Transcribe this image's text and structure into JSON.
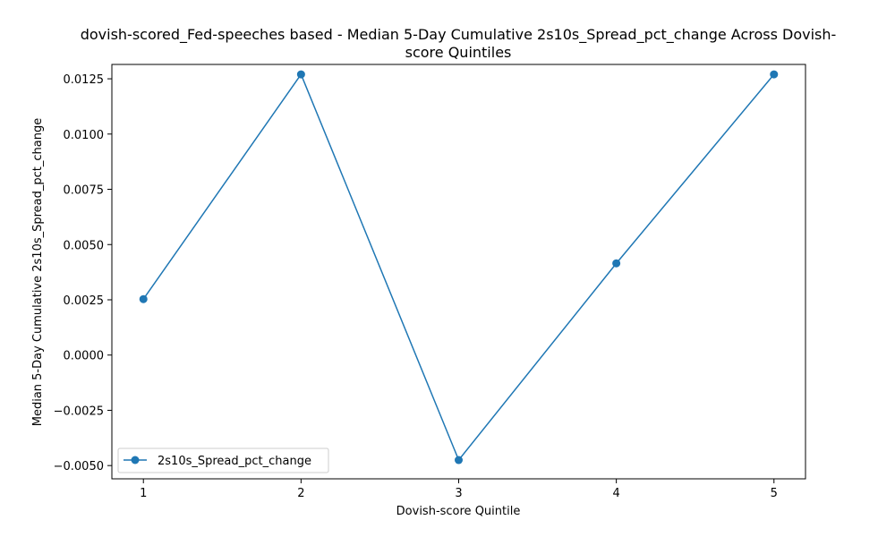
{
  "chart_data": {
    "type": "line",
    "title_line1": "dovish-scored_Fed-speeches based - Median 5-Day Cumulative 2s10s_Spread_pct_change Across Dovish-",
    "title_line2": "score Quintiles",
    "xlabel": "Dovish-score Quintile",
    "ylabel": "Median 5-Day Cumulative 2s10s_Spread_pct_change",
    "x": [
      1,
      2,
      3,
      4,
      5
    ],
    "x_ticks": [
      "1",
      "2",
      "3",
      "4",
      "5"
    ],
    "series": [
      {
        "name": "2s10s_Spread_pct_change",
        "color": "#1f77b4",
        "marker": "circle",
        "values": [
          0.00253,
          0.0127,
          -0.00475,
          0.00415,
          0.0127
        ]
      }
    ],
    "y_ticks": [
      -0.005,
      -0.0025,
      0.0,
      0.0025,
      0.005,
      0.0075,
      0.01,
      0.0125
    ],
    "y_tick_labels": [
      "−0.0050",
      "−0.0025",
      "0.0000",
      "0.0025",
      "0.0050",
      "0.0075",
      "0.0100",
      "0.0125"
    ],
    "xlim": [
      0.8,
      5.2
    ],
    "ylim": [
      -0.0056,
      0.01315
    ],
    "grid": false,
    "legend_position": "lower-left"
  }
}
